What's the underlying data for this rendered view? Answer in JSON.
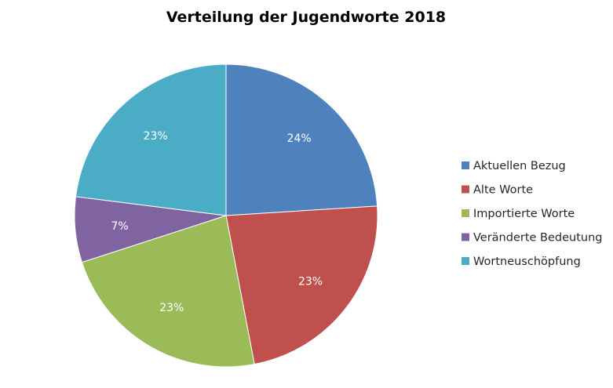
{
  "chart_data": {
    "type": "pie",
    "title": "Verteilung der Jugendworte 2018",
    "categories": [
      "Aktuellen Bezug",
      "Alte Worte",
      "Importierte Worte",
      "Veränderte Bedeutung",
      "Wortneuschöpfung"
    ],
    "values": [
      24,
      23,
      23,
      7,
      23
    ],
    "data_labels": [
      "24%",
      "23%",
      "23%",
      "7%",
      "23%"
    ],
    "colors": [
      "#4F81BD",
      "#C0504D",
      "#9BBB59",
      "#8064A2",
      "#4BACC6"
    ],
    "start_angle_deg": 0,
    "direction": "clockwise",
    "legend": "right",
    "grid": false
  }
}
